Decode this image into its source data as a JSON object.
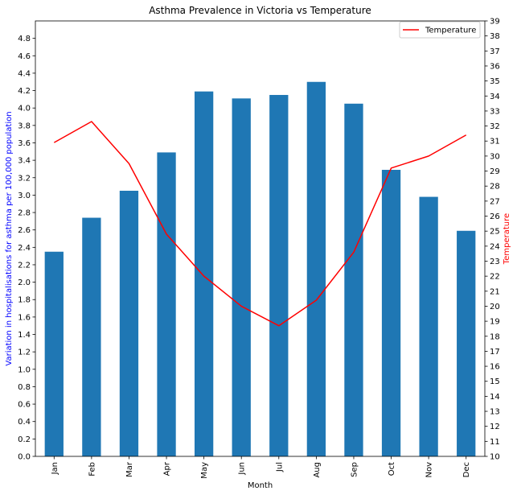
{
  "chart_data": {
    "type": "bar",
    "title": "Asthma Prevalence in Victoria vs Temperature",
    "xlabel": "Month",
    "categories": [
      "Jan",
      "Feb",
      "Mar",
      "Apr",
      "May",
      "Jun",
      "Jul",
      "Aug",
      "Sep",
      "Oct",
      "Nov",
      "Dec"
    ],
    "bars": {
      "ylabel": "Variation in hospitalisations for asthma per 100,000 population",
      "ylim": [
        0,
        5.0
      ],
      "yticks": [
        "0.0",
        "0.2",
        "0.4",
        "0.6",
        "0.8",
        "1.0",
        "1.2",
        "1.4",
        "1.6",
        "1.8",
        "2.0",
        "2.2",
        "2.4",
        "2.6",
        "2.8",
        "3.0",
        "3.2",
        "3.4",
        "3.6",
        "3.8",
        "4.0",
        "4.2",
        "4.4",
        "4.6",
        "4.8"
      ],
      "values": [
        2.35,
        2.74,
        3.05,
        3.49,
        4.19,
        4.11,
        4.15,
        4.3,
        4.05,
        3.29,
        2.98,
        2.59
      ],
      "color": "#1f77b4",
      "ylabel_color": "#0000ff"
    },
    "line": {
      "name": "Temperature",
      "ylabel": "Temperature",
      "ylim": [
        10,
        39
      ],
      "yticks": [
        "10",
        "11",
        "12",
        "13",
        "14",
        "15",
        "16",
        "17",
        "18",
        "19",
        "20",
        "21",
        "22",
        "23",
        "24",
        "25",
        "26",
        "27",
        "28",
        "29",
        "30",
        "31",
        "32",
        "33",
        "34",
        "35",
        "36",
        "37",
        "38",
        "39"
      ],
      "values": [
        30.9,
        32.3,
        29.5,
        24.8,
        22.0,
        20.0,
        18.7,
        20.4,
        23.6,
        29.2,
        30.0,
        31.4
      ],
      "color": "#ff0000"
    },
    "legend": {
      "placement": "top-right",
      "entries": [
        "Temperature"
      ]
    },
    "grid": false
  }
}
